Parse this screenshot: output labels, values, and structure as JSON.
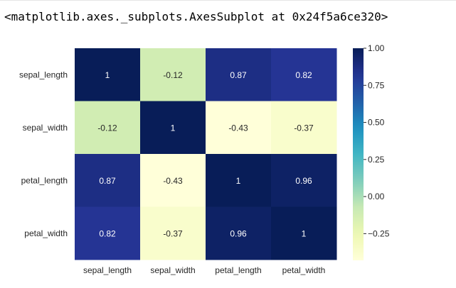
{
  "output_repr": "<matplotlib.axes._subplots.AxesSubplot at 0x24f5a6ce320>",
  "chart_data": {
    "type": "heatmap",
    "colormap": "YlGnBu",
    "rows": [
      "sepal_length",
      "sepal_width",
      "petal_length",
      "petal_width"
    ],
    "columns": [
      "sepal_length",
      "sepal_width",
      "petal_length",
      "petal_width"
    ],
    "values": [
      [
        1,
        -0.12,
        0.87,
        0.82
      ],
      [
        -0.12,
        1,
        -0.43,
        -0.37
      ],
      [
        0.87,
        -0.43,
        1,
        0.96
      ],
      [
        0.82,
        -0.37,
        0.96,
        1
      ]
    ],
    "annotations": [
      [
        "1",
        "-0.12",
        "0.87",
        "0.82"
      ],
      [
        "-0.12",
        "1",
        "-0.43",
        "-0.37"
      ],
      [
        "0.87",
        "-0.43",
        "1",
        "0.96"
      ],
      [
        "0.82",
        "-0.37",
        "0.96",
        "1"
      ]
    ],
    "vmin": -0.43,
    "vmax": 1.0,
    "colorbar_ticks": [
      {
        "value": 1.0,
        "label": "1.00"
      },
      {
        "value": 0.75,
        "label": "0.75"
      },
      {
        "value": 0.5,
        "label": "0.50"
      },
      {
        "value": 0.25,
        "label": "0.25"
      },
      {
        "value": 0.0,
        "label": "0.00"
      },
      {
        "value": -0.25,
        "label": "−0.25"
      }
    ]
  }
}
